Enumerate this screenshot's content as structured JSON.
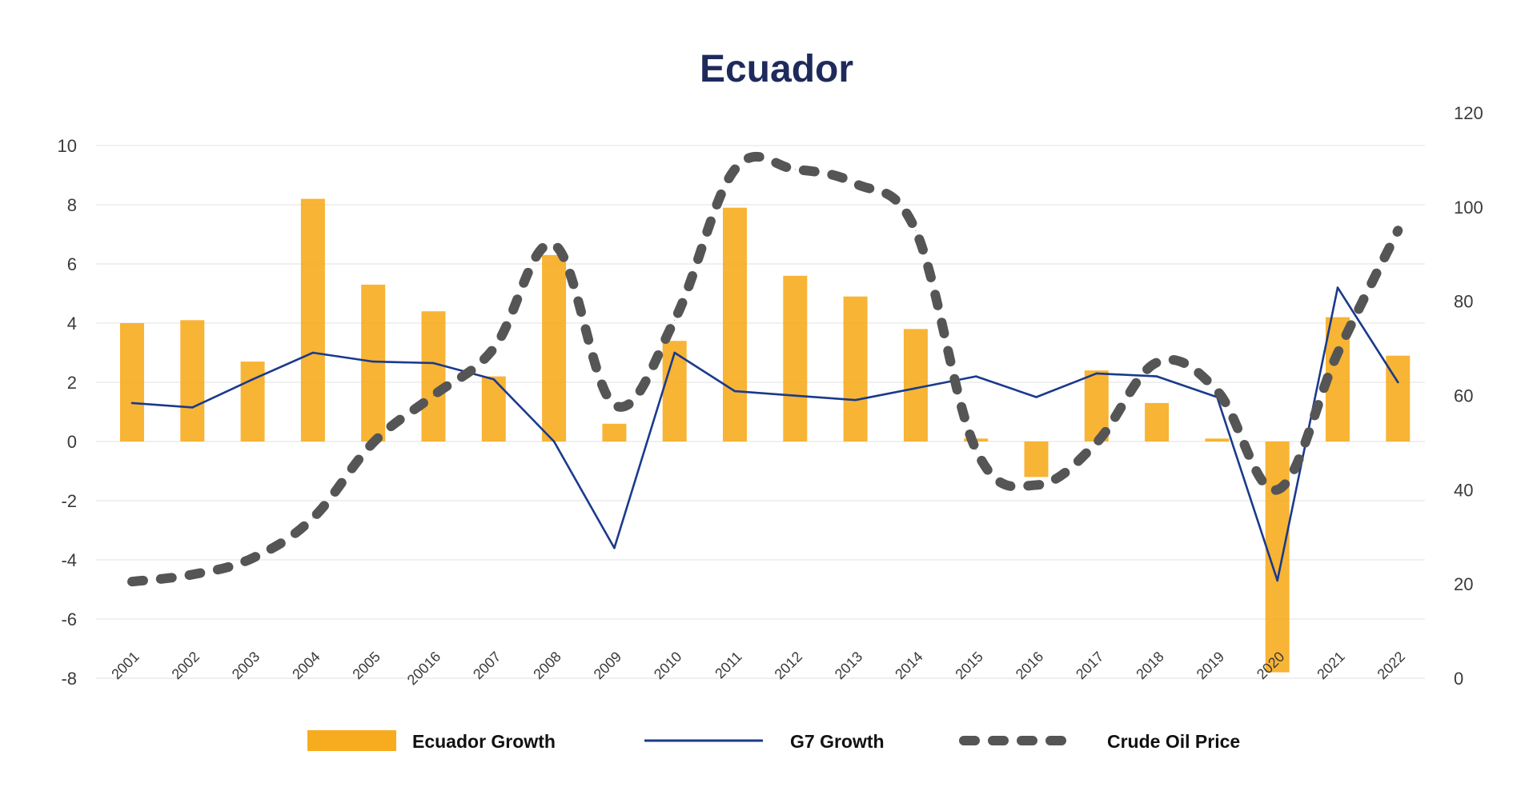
{
  "chart_data": {
    "type": "bar",
    "title": "Ecuador",
    "categories": [
      "2001",
      "2002",
      "2003",
      "2004",
      "2005",
      "20016",
      "2007",
      "2008",
      "2009",
      "2010",
      "2011",
      "2012",
      "2013",
      "2014",
      "2015",
      "2016",
      "2017",
      "2018",
      "2019",
      "2020",
      "2021",
      "2022"
    ],
    "y_left": {
      "ylim": [
        -8,
        10
      ],
      "ticks": [
        "-8",
        "-6",
        "-4",
        "-2",
        "0",
        "2",
        "4",
        "6",
        "8",
        "10"
      ]
    },
    "y_right": {
      "ylim": [
        0,
        120
      ],
      "ticks": [
        "0",
        "20",
        "40",
        "60",
        "80",
        "100",
        "120"
      ]
    },
    "grid": true,
    "legend_position": "bottom",
    "series": [
      {
        "name": "Ecuador Growth",
        "type": "bar",
        "axis": "left",
        "color": "#f7ac1f",
        "values": [
          4.0,
          4.1,
          2.7,
          8.2,
          5.3,
          4.4,
          2.2,
          6.3,
          0.6,
          3.4,
          7.9,
          5.6,
          4.9,
          3.8,
          0.1,
          -1.2,
          2.4,
          1.3,
          0.1,
          -7.8,
          4.2,
          2.9
        ]
      },
      {
        "name": "G7 Growth",
        "type": "line",
        "axis": "left",
        "color": "#1a3a8c",
        "values": [
          1.3,
          1.15,
          2.1,
          3.0,
          2.7,
          2.65,
          2.1,
          0.0,
          -3.6,
          3.0,
          1.7,
          1.55,
          1.4,
          1.8,
          2.2,
          1.5,
          2.3,
          2.2,
          1.5,
          -4.7,
          5.2,
          2.0
        ]
      },
      {
        "name": "Crude Oil Price",
        "type": "line-dashed",
        "axis": "right",
        "color": "#555555",
        "values": [
          20.5,
          22,
          25.5,
          34,
          50,
          60,
          70,
          92,
          58,
          76,
          108,
          108,
          105,
          95,
          48.5,
          41,
          50,
          67,
          61,
          40,
          69,
          95
        ]
      }
    ]
  }
}
